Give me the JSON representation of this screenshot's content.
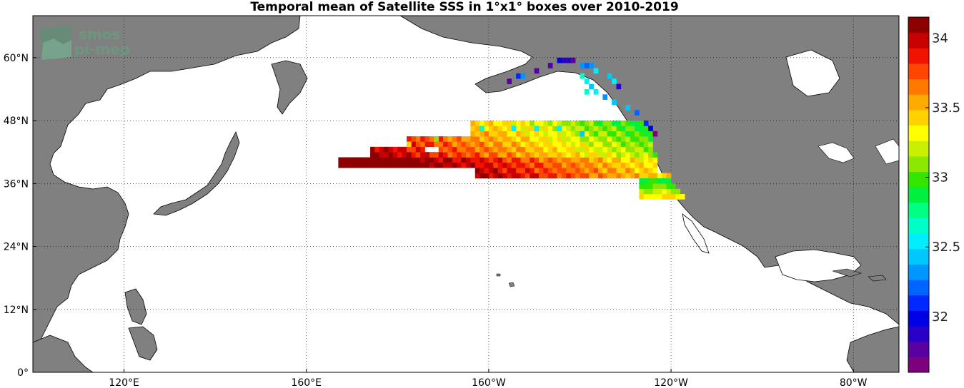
{
  "title": "Temporal mean of Satellite SSS in 1°x1° boxes over 2010-2019",
  "logo": {
    "line1": "smos",
    "line2": "pi-mep"
  },
  "map": {
    "lon_range": [
      100,
      -70
    ],
    "lat_range": [
      0,
      68
    ],
    "land_color": "#808080",
    "ocean_color": "#ffffff",
    "gridlines": "dotted",
    "lon_ticks": [
      {
        "lon": 120,
        "label": "120°E"
      },
      {
        "lon": 160,
        "label": "160°E"
      },
      {
        "lon": -160,
        "label": "160°W"
      },
      {
        "lon": -120,
        "label": "120°W"
      },
      {
        "lon": -80,
        "label": "80°W"
      }
    ],
    "lat_ticks": [
      {
        "lat": 0,
        "label": "0°"
      },
      {
        "lat": 12,
        "label": "12°N"
      },
      {
        "lat": 24,
        "label": "24°N"
      },
      {
        "lat": 36,
        "label": "36°N"
      },
      {
        "lat": 48,
        "label": "48°N"
      },
      {
        "lat": 60,
        "label": "60°N"
      }
    ]
  },
  "colorbar": {
    "min": 31.6,
    "max": 34.15,
    "levels": 22,
    "ticks": [
      {
        "value": 34,
        "label": "34"
      },
      {
        "value": 33.5,
        "label": "33.5"
      },
      {
        "value": 33,
        "label": "33"
      },
      {
        "value": 32.5,
        "label": "32.5"
      },
      {
        "value": 32,
        "label": "32"
      }
    ],
    "colors": [
      "#7d007d",
      "#5a00a0",
      "#2a00c8",
      "#0000e6",
      "#0028ff",
      "#0064ff",
      "#0096ff",
      "#00c8ff",
      "#00eeff",
      "#00ffc8",
      "#00ff82",
      "#00f040",
      "#32e600",
      "#8ce600",
      "#c8f000",
      "#ffff00",
      "#ffd200",
      "#ffaa00",
      "#ff7800",
      "#ff4600",
      "#f01400",
      "#c80000",
      "#8c0000"
    ]
  },
  "sss_cells": [
    {
      "lon": -147,
      "lat": 58,
      "v": 31.75
    },
    {
      "lon": -145,
      "lat": 59,
      "v": 32.0
    },
    {
      "lon": -144,
      "lat": 59,
      "v": 31.85
    },
    {
      "lon": -143,
      "lat": 59,
      "v": 31.9
    },
    {
      "lon": -142,
      "lat": 59,
      "v": 31.8
    },
    {
      "lon": -150,
      "lat": 57,
      "v": 31.75
    },
    {
      "lon": -154,
      "lat": 56,
      "v": 32.05
    },
    {
      "lon": -153,
      "lat": 56,
      "v": 32.3
    },
    {
      "lon": -156,
      "lat": 55,
      "v": 31.8
    },
    {
      "lon": -140,
      "lat": 58,
      "v": 32.3
    },
    {
      "lon": -139,
      "lat": 58,
      "v": 32.2
    },
    {
      "lon": -138,
      "lat": 58,
      "v": 32.35
    },
    {
      "lon": -137,
      "lat": 57,
      "v": 32.5
    },
    {
      "lon": -134,
      "lat": 56,
      "v": 32.4
    },
    {
      "lon": -133,
      "lat": 55,
      "v": 32.55
    },
    {
      "lon": -132,
      "lat": 54,
      "v": 31.9
    },
    {
      "lon": -140,
      "lat": 56,
      "v": 32.6
    },
    {
      "lon": -139,
      "lat": 55,
      "v": 32.55
    },
    {
      "lon": -138,
      "lat": 54,
      "v": 32.45
    },
    {
      "lon": -139,
      "lat": 53,
      "v": 32.6
    },
    {
      "lon": -137,
      "lat": 53,
      "v": 32.5
    },
    {
      "lon": -135,
      "lat": 52,
      "v": 32.35
    },
    {
      "lon": -133,
      "lat": 51,
      "v": 32.45
    },
    {
      "lon": -130,
      "lat": 50,
      "v": 32.4
    },
    {
      "lon": -128,
      "lat": 49,
      "v": 32.2
    },
    {
      "lon": -126,
      "lat": 47,
      "v": 32.1
    },
    {
      "lon": -125,
      "lat": 46,
      "v": 31.95
    },
    {
      "lon": -124,
      "lat": 45,
      "v": 31.7
    },
    {
      "lon": -178,
      "lat": 43,
      "v": 33.45
    },
    {
      "lon": -172,
      "lat": 44,
      "v": 33.1
    },
    {
      "lon": -162,
      "lat": 46,
      "v": 32.6
    },
    {
      "lon": -155,
      "lat": 46,
      "v": 32.55
    },
    {
      "lon": -150,
      "lat": 46,
      "v": 32.5
    },
    {
      "lon": -145,
      "lat": 46,
      "v": 32.5
    },
    {
      "lon": -140,
      "lat": 45,
      "v": 32.45
    }
  ]
}
